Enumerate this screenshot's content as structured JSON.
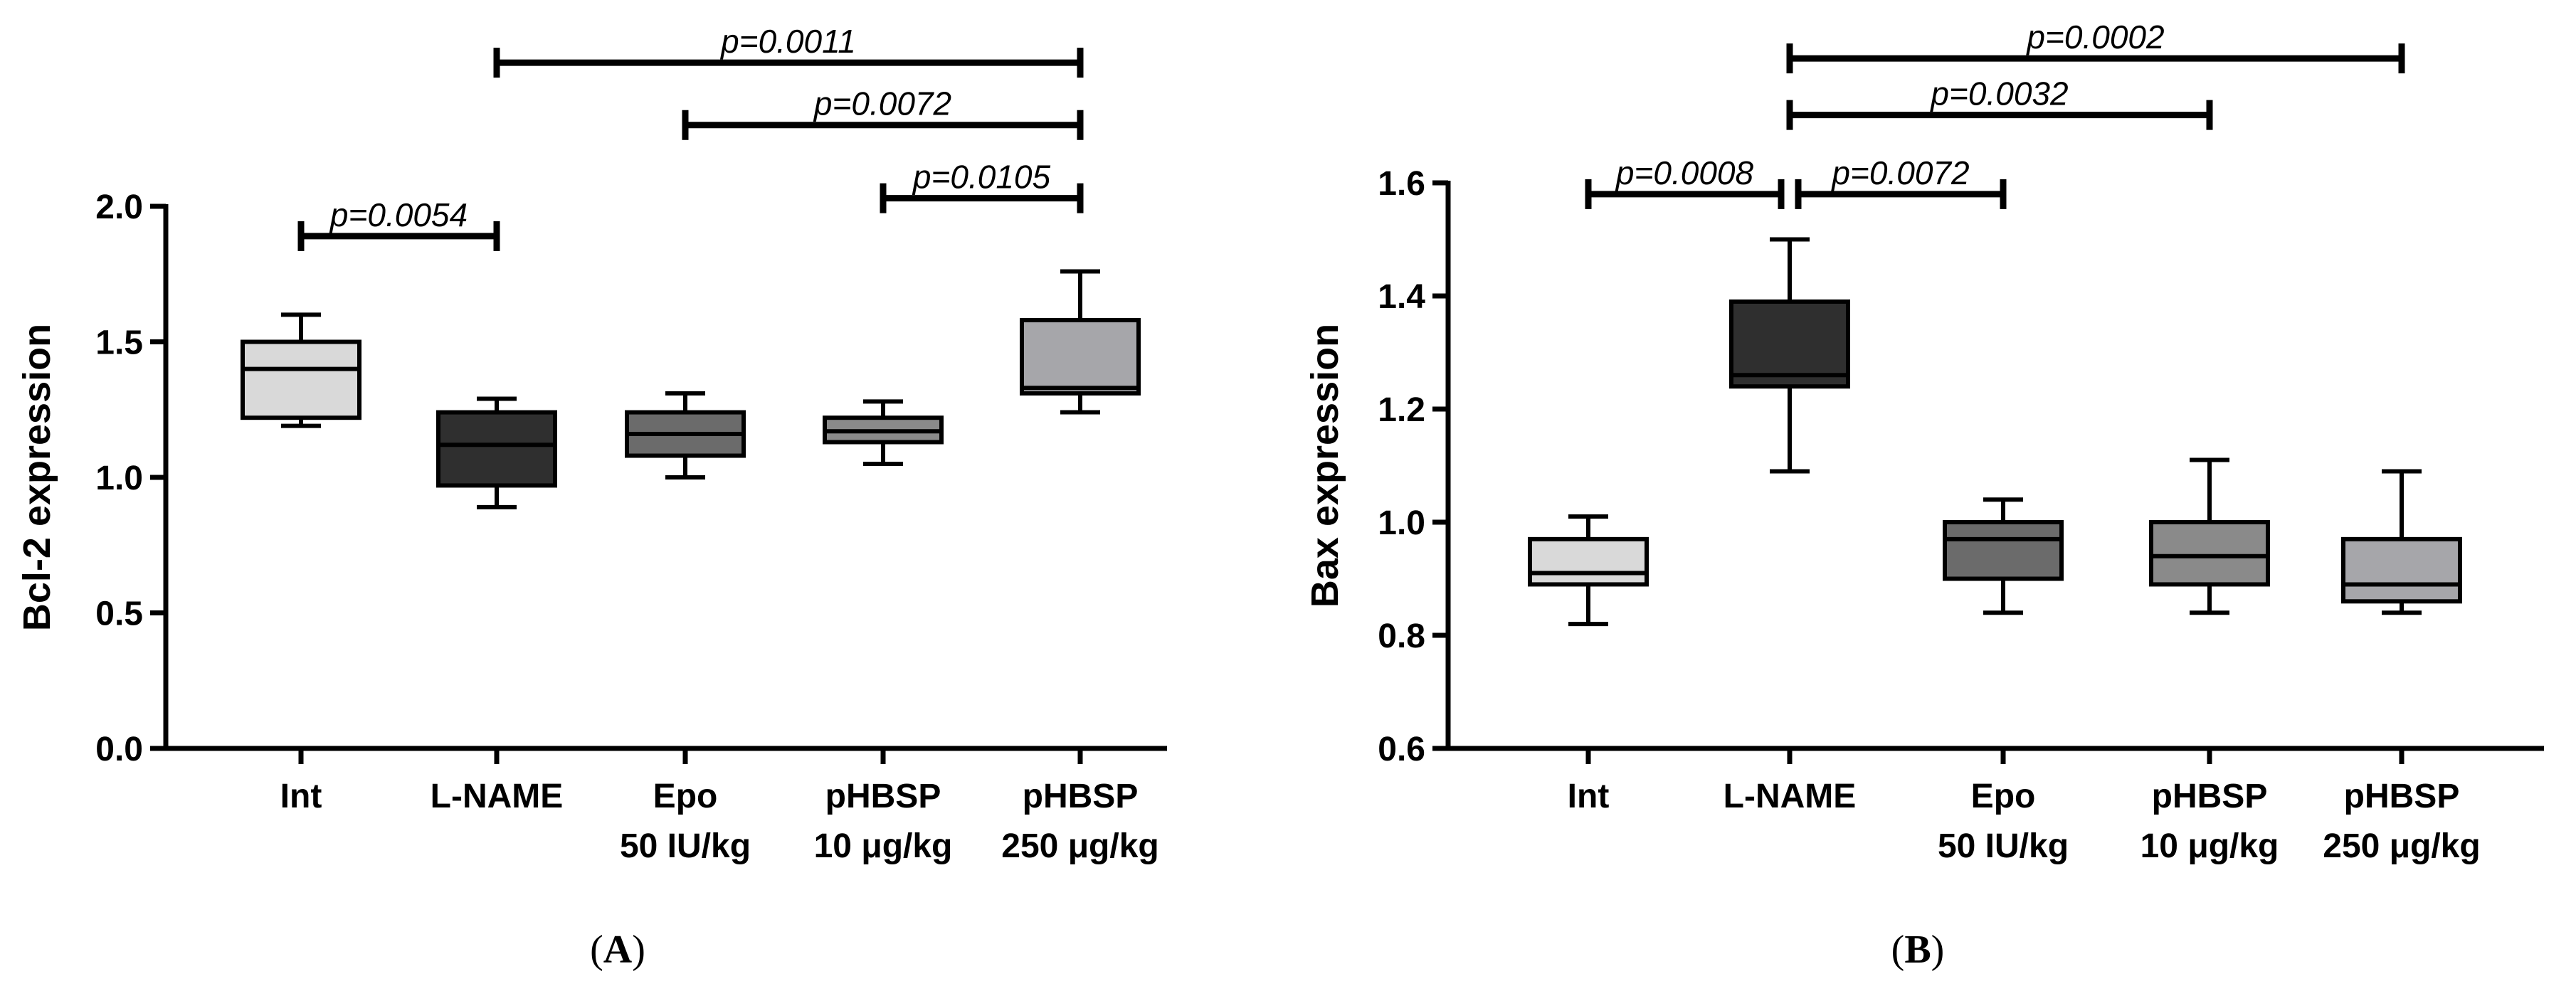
{
  "chart_data": [
    {
      "type": "box",
      "panel_label": {
        "open": "(",
        "letter": "A",
        "close": ")"
      },
      "ylabel": "Bcl-2 expression",
      "xlabel": "",
      "ylim": [
        0,
        2.0
      ],
      "yticks": [
        "0.0",
        "0.5",
        "1.0",
        "1.5",
        "2.0"
      ],
      "yticks_values": [
        0,
        0.5,
        1.0,
        1.5,
        2.0
      ],
      "categories": [
        {
          "line1": "Int",
          "line2": ""
        },
        {
          "line1": "L-NAME",
          "line2": ""
        },
        {
          "line1": "Epo",
          "line2": "50 IU/kg"
        },
        {
          "line1": "pHBSP",
          "line2": "10 μg/kg"
        },
        {
          "line1": "pHBSP",
          "line2": "250 μg/kg"
        }
      ],
      "boxes": [
        {
          "min": 1.19,
          "q1": 1.22,
          "median": 1.4,
          "q3": 1.5,
          "max": 1.6,
          "color": "#d9d9d9"
        },
        {
          "min": 0.89,
          "q1": 0.97,
          "median": 1.12,
          "q3": 1.24,
          "max": 1.29,
          "color": "#2f2f2f"
        },
        {
          "min": 1.0,
          "q1": 1.08,
          "median": 1.16,
          "q3": 1.24,
          "max": 1.31,
          "color": "#6b6b6b"
        },
        {
          "min": 1.05,
          "q1": 1.13,
          "median": 1.17,
          "q3": 1.22,
          "max": 1.28,
          "color": "#8a8a8a"
        },
        {
          "min": 1.24,
          "q1": 1.31,
          "median": 1.33,
          "q3": 1.58,
          "max": 1.76,
          "color": "#a6a6aa"
        }
      ],
      "comparisons": [
        {
          "from": 0,
          "to": 1,
          "level": 1.89,
          "label": "p=0.0054"
        },
        {
          "from": 3,
          "to": 4,
          "level": 2.03,
          "label": "p=0.0105"
        },
        {
          "from": 2,
          "to": 4,
          "level": 2.3,
          "label": "p=0.0072"
        },
        {
          "from": 1,
          "to": 4,
          "level": 2.53,
          "label": "p=0.0011"
        }
      ]
    },
    {
      "type": "box",
      "panel_label": {
        "open": "(",
        "letter": "B",
        "close": ")"
      },
      "ylabel": "Bax expression",
      "xlabel": "",
      "ylim": [
        0.6,
        1.6
      ],
      "yticks": [
        "0.6",
        "0.8",
        "1.0",
        "1.2",
        "1.4",
        "1.6"
      ],
      "yticks_values": [
        0.6,
        0.8,
        1.0,
        1.2,
        1.4,
        1.6
      ],
      "categories": [
        {
          "line1": "Int",
          "line2": ""
        },
        {
          "line1": "L-NAME",
          "line2": ""
        },
        {
          "line1": "Epo",
          "line2": "50 IU/kg"
        },
        {
          "line1": "pHBSP",
          "line2": "10 μg/kg"
        },
        {
          "line1": "pHBSP",
          "line2": "250 μg/kg"
        }
      ],
      "boxes": [
        {
          "min": 0.82,
          "q1": 0.89,
          "median": 0.91,
          "q3": 0.97,
          "max": 1.01,
          "color": "#d9d9d9"
        },
        {
          "min": 1.09,
          "q1": 1.24,
          "median": 1.26,
          "q3": 1.39,
          "max": 1.5,
          "color": "#2f2f2f"
        },
        {
          "min": 0.84,
          "q1": 0.9,
          "median": 0.97,
          "q3": 1.0,
          "max": 1.04,
          "color": "#6b6b6b"
        },
        {
          "min": 0.84,
          "q1": 0.89,
          "median": 0.94,
          "q3": 1.0,
          "max": 1.11,
          "color": "#8a8a8a"
        },
        {
          "min": 0.84,
          "q1": 0.86,
          "median": 0.89,
          "q3": 0.97,
          "max": 1.09,
          "color": "#a6a6aa"
        }
      ],
      "comparisons": [
        {
          "from": 0,
          "to": 1,
          "level": 1.58,
          "label": "p=0.0008",
          "short_end": true
        },
        {
          "from": 1,
          "to": 2,
          "level": 1.58,
          "label": "p=0.0072",
          "short_start": true
        },
        {
          "from": 1,
          "to": 3,
          "level": 1.72,
          "label": "p=0.0032"
        },
        {
          "from": 1,
          "to": 4,
          "level": 1.82,
          "label": "p=0.0002"
        }
      ]
    }
  ]
}
